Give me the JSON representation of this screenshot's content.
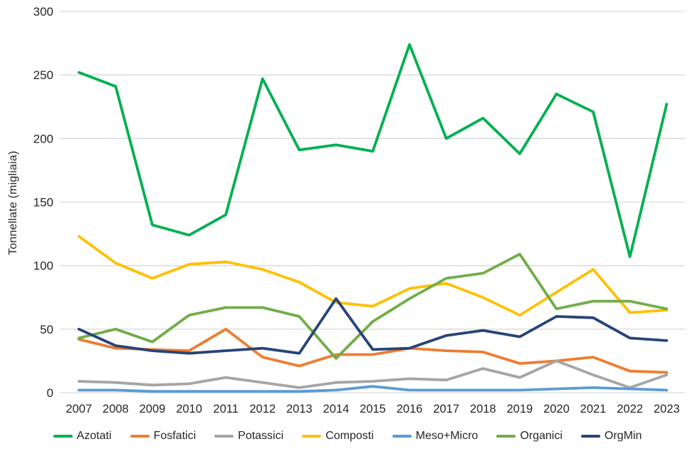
{
  "chart_data": {
    "type": "line",
    "title": "",
    "xlabel": "",
    "ylabel": "Tonnellate (migliaia)",
    "ylim": [
      0,
      300
    ],
    "yticks": [
      0,
      50,
      100,
      150,
      200,
      250,
      300
    ],
    "grid": "horizontal-only",
    "legend_position": "bottom",
    "gridline_color": "#d9d9d9",
    "axis_text_color": "#262626",
    "categories": [
      "2007",
      "2008",
      "2009",
      "2010",
      "2011",
      "2012",
      "2013",
      "2014",
      "2015",
      "2016",
      "2017",
      "2018",
      "2019",
      "2020",
      "2021",
      "2022",
      "2023"
    ],
    "series": [
      {
        "name": "Azotati",
        "color": "#00B050",
        "values": [
          252,
          241,
          132,
          124,
          140,
          247,
          191,
          195,
          190,
          274,
          200,
          216,
          188,
          235,
          221,
          107,
          227
        ]
      },
      {
        "name": "Fosfatici",
        "color": "#ED7D31",
        "values": [
          42,
          35,
          34,
          33,
          50,
          28,
          21,
          30,
          30,
          35,
          33,
          32,
          23,
          25,
          28,
          17,
          16
        ]
      },
      {
        "name": "Potassici",
        "color": "#A5A5A5",
        "values": [
          9,
          8,
          6,
          7,
          12,
          8,
          4,
          8,
          9,
          11,
          10,
          19,
          12,
          25,
          14,
          4,
          14
        ]
      },
      {
        "name": "Composti",
        "color": "#FFC000",
        "values": [
          123,
          102,
          90,
          101,
          103,
          97,
          87,
          71,
          68,
          82,
          86,
          75,
          61,
          79,
          97,
          63,
          65
        ]
      },
      {
        "name": "Meso+Micro",
        "color": "#5B9BD5",
        "values": [
          2,
          2,
          1,
          1,
          1,
          1,
          1,
          2,
          5,
          2,
          2,
          2,
          2,
          3,
          4,
          3,
          2
        ]
      },
      {
        "name": "Organici",
        "color": "#70AD47",
        "values": [
          43,
          50,
          40,
          61,
          67,
          67,
          60,
          27,
          56,
          74,
          90,
          94,
          109,
          66,
          72,
          72,
          66
        ]
      },
      {
        "name": "OrgMin",
        "color": "#264478",
        "values": [
          50,
          37,
          33,
          31,
          33,
          35,
          31,
          74,
          34,
          35,
          45,
          49,
          44,
          60,
          59,
          43,
          41
        ]
      }
    ]
  }
}
